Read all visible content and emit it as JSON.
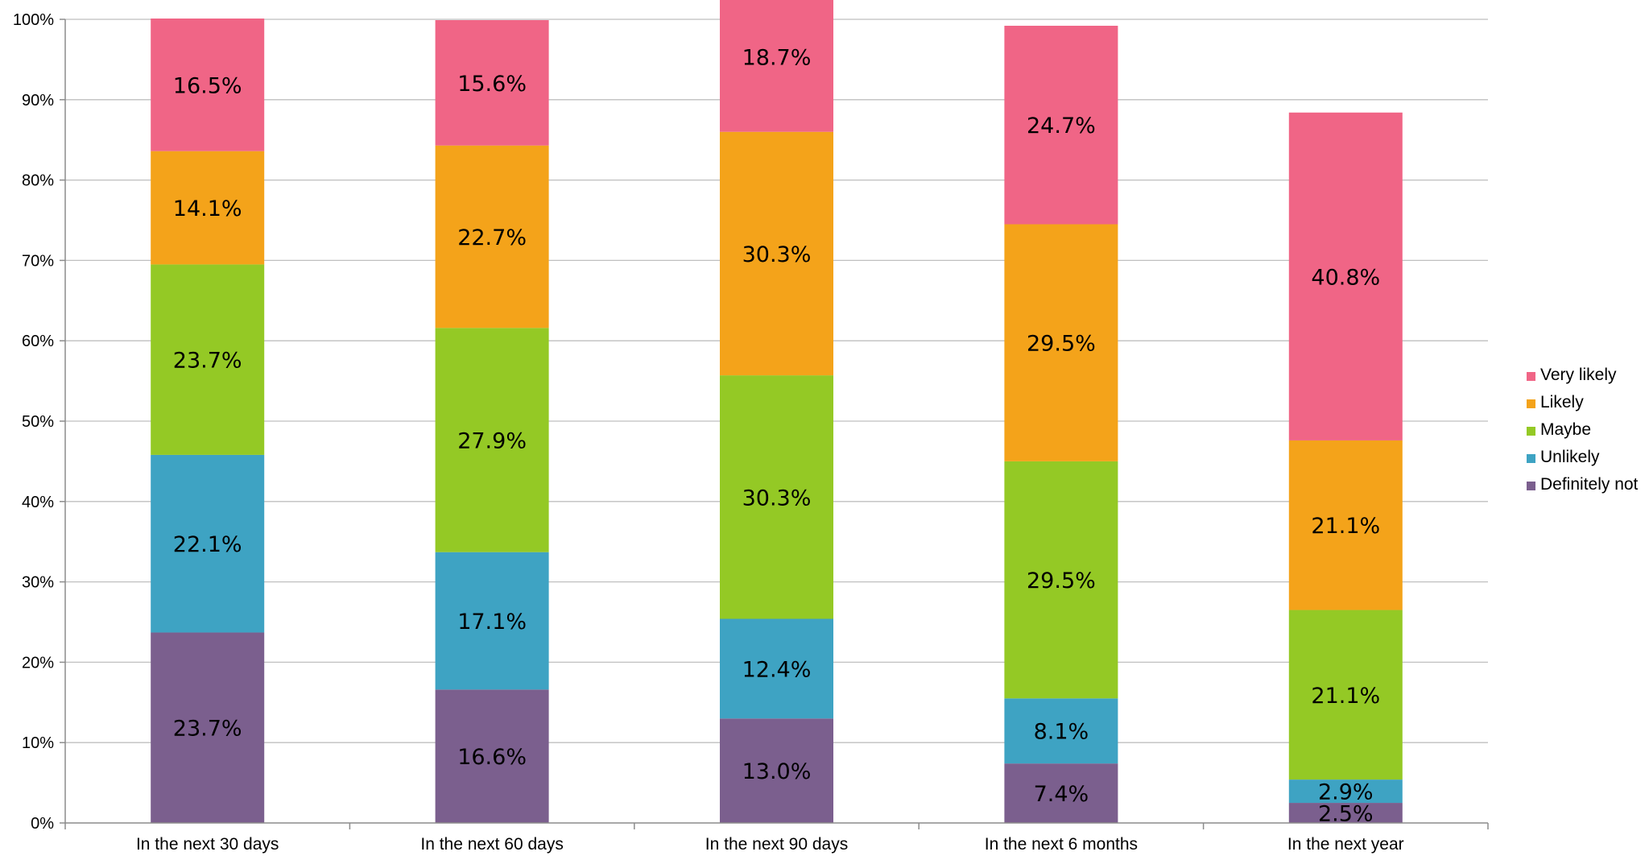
{
  "chart_data": {
    "type": "bar",
    "stacked": true,
    "categories": [
      "In the next 30 days",
      "In the next 60 days",
      "In the next 90 days",
      "In the next 6 months",
      "In the next year"
    ],
    "series": [
      {
        "name": "Definitely not",
        "color": "#7b5f8e",
        "values": [
          23.7,
          16.6,
          13.0,
          7.4,
          2.5
        ],
        "labels": [
          "23.7%",
          "16.6%",
          "13.0%",
          "7.4%",
          "2.5%"
        ]
      },
      {
        "name": "Unlikely",
        "color": "#3ea3c3",
        "values": [
          22.1,
          17.1,
          12.4,
          8.1,
          2.9
        ],
        "labels": [
          "22.1%",
          "17.1%",
          "12.4%",
          "8.1%",
          "2.9%"
        ]
      },
      {
        "name": "Maybe",
        "color": "#94c925",
        "values": [
          23.7,
          27.9,
          30.3,
          29.5,
          21.1
        ],
        "labels": [
          "23.7%",
          "27.9%",
          "30.3%",
          "29.5%",
          "21.1%"
        ]
      },
      {
        "name": "Likely",
        "color": "#f4a31a",
        "values": [
          14.1,
          22.7,
          30.3,
          29.5,
          21.1
        ],
        "labels": [
          "14.1%",
          "22.7%",
          "30.3%",
          "29.5%",
          "21.1%"
        ]
      },
      {
        "name": "Very likely",
        "color": "#f06586",
        "values": [
          16.5,
          15.6,
          18.7,
          24.7,
          40.8
        ],
        "labels": [
          "16.5%",
          "15.6%",
          "18.7%",
          "24.7%",
          "40.8%"
        ]
      }
    ],
    "ylim": [
      0,
      100
    ],
    "yticks": [
      0,
      10,
      20,
      30,
      40,
      50,
      60,
      70,
      80,
      90,
      100
    ],
    "ytick_labels": [
      "0%",
      "10%",
      "20%",
      "30%",
      "40%",
      "50%",
      "60%",
      "70%",
      "80%",
      "90%",
      "100%"
    ],
    "grid": true,
    "legend_position": "right",
    "legend_order": [
      "Very likely",
      "Likely",
      "Maybe",
      "Unlikely",
      "Definitely not"
    ],
    "title": "",
    "xlabel": "",
    "ylabel": ""
  }
}
